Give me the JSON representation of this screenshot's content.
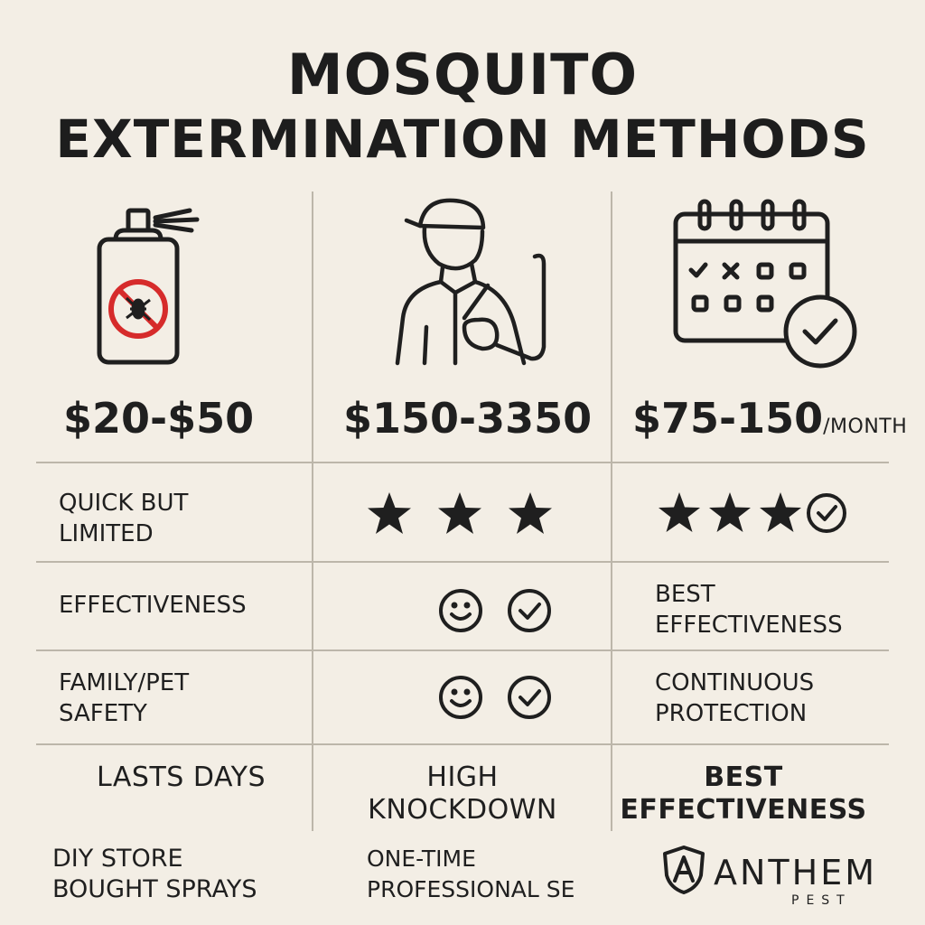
{
  "title": {
    "line1": "MOSQUITO",
    "line2": "EXTERMINATION METHODS"
  },
  "columns": [
    {
      "icon": "spray-can-no-mosquito-icon",
      "price": "$20-$50",
      "unit": "",
      "label": "DIY STORE BOUGHT SPRAYS"
    },
    {
      "icon": "technician-with-sprayer-icon",
      "price": "$150-3350",
      "unit": "",
      "label": "ONE-TIME PROFESSIONAL SE"
    },
    {
      "icon": "calendar-check-icon",
      "price": "$75-150",
      "unit": "/MONTH",
      "label": ""
    }
  ],
  "rows": {
    "row1": {
      "col1": [
        "QUICK BUT",
        "LIMITED"
      ],
      "col2_icons": [
        "star-icon",
        "star-icon",
        "star-icon"
      ],
      "col3_icons": [
        "star-icon",
        "star-icon",
        "star-icon",
        "check-circle-icon"
      ]
    },
    "row2": {
      "col1": [
        "EFFECTIVENESS"
      ],
      "col2_icons": [
        "smiley-icon",
        "check-circle-icon"
      ],
      "col3": [
        "BEST",
        "EFFECTIVENESS"
      ]
    },
    "row3": {
      "col1": [
        "FAMILY/PET",
        "SAFETY"
      ],
      "col2_icons": [
        "smiley-icon",
        "check-circle-icon"
      ],
      "col3": [
        "CONTINUOUS",
        "PROTECTION"
      ]
    },
    "row4": {
      "col1": [
        "LASTS DAYS"
      ],
      "col2": [
        "HIGH",
        "KNOCKDOWN"
      ],
      "col3": [
        "BEST",
        "EFFECTIVENESS"
      ]
    }
  },
  "footer": {
    "col1": [
      "DIY STORE",
      "BOUGHT SPRAYS"
    ],
    "col2": [
      "ONE-TIME",
      "PROFESSIONAL SE"
    ],
    "brand": {
      "name": "ANTHEM",
      "sub": "PEST",
      "icon": "shield-a-logo-icon"
    }
  },
  "colors": {
    "background": "#f3eee5",
    "ink": "#1f1f1f",
    "gridline": "#bcb6aa",
    "prohibition": "#d62b2b"
  }
}
